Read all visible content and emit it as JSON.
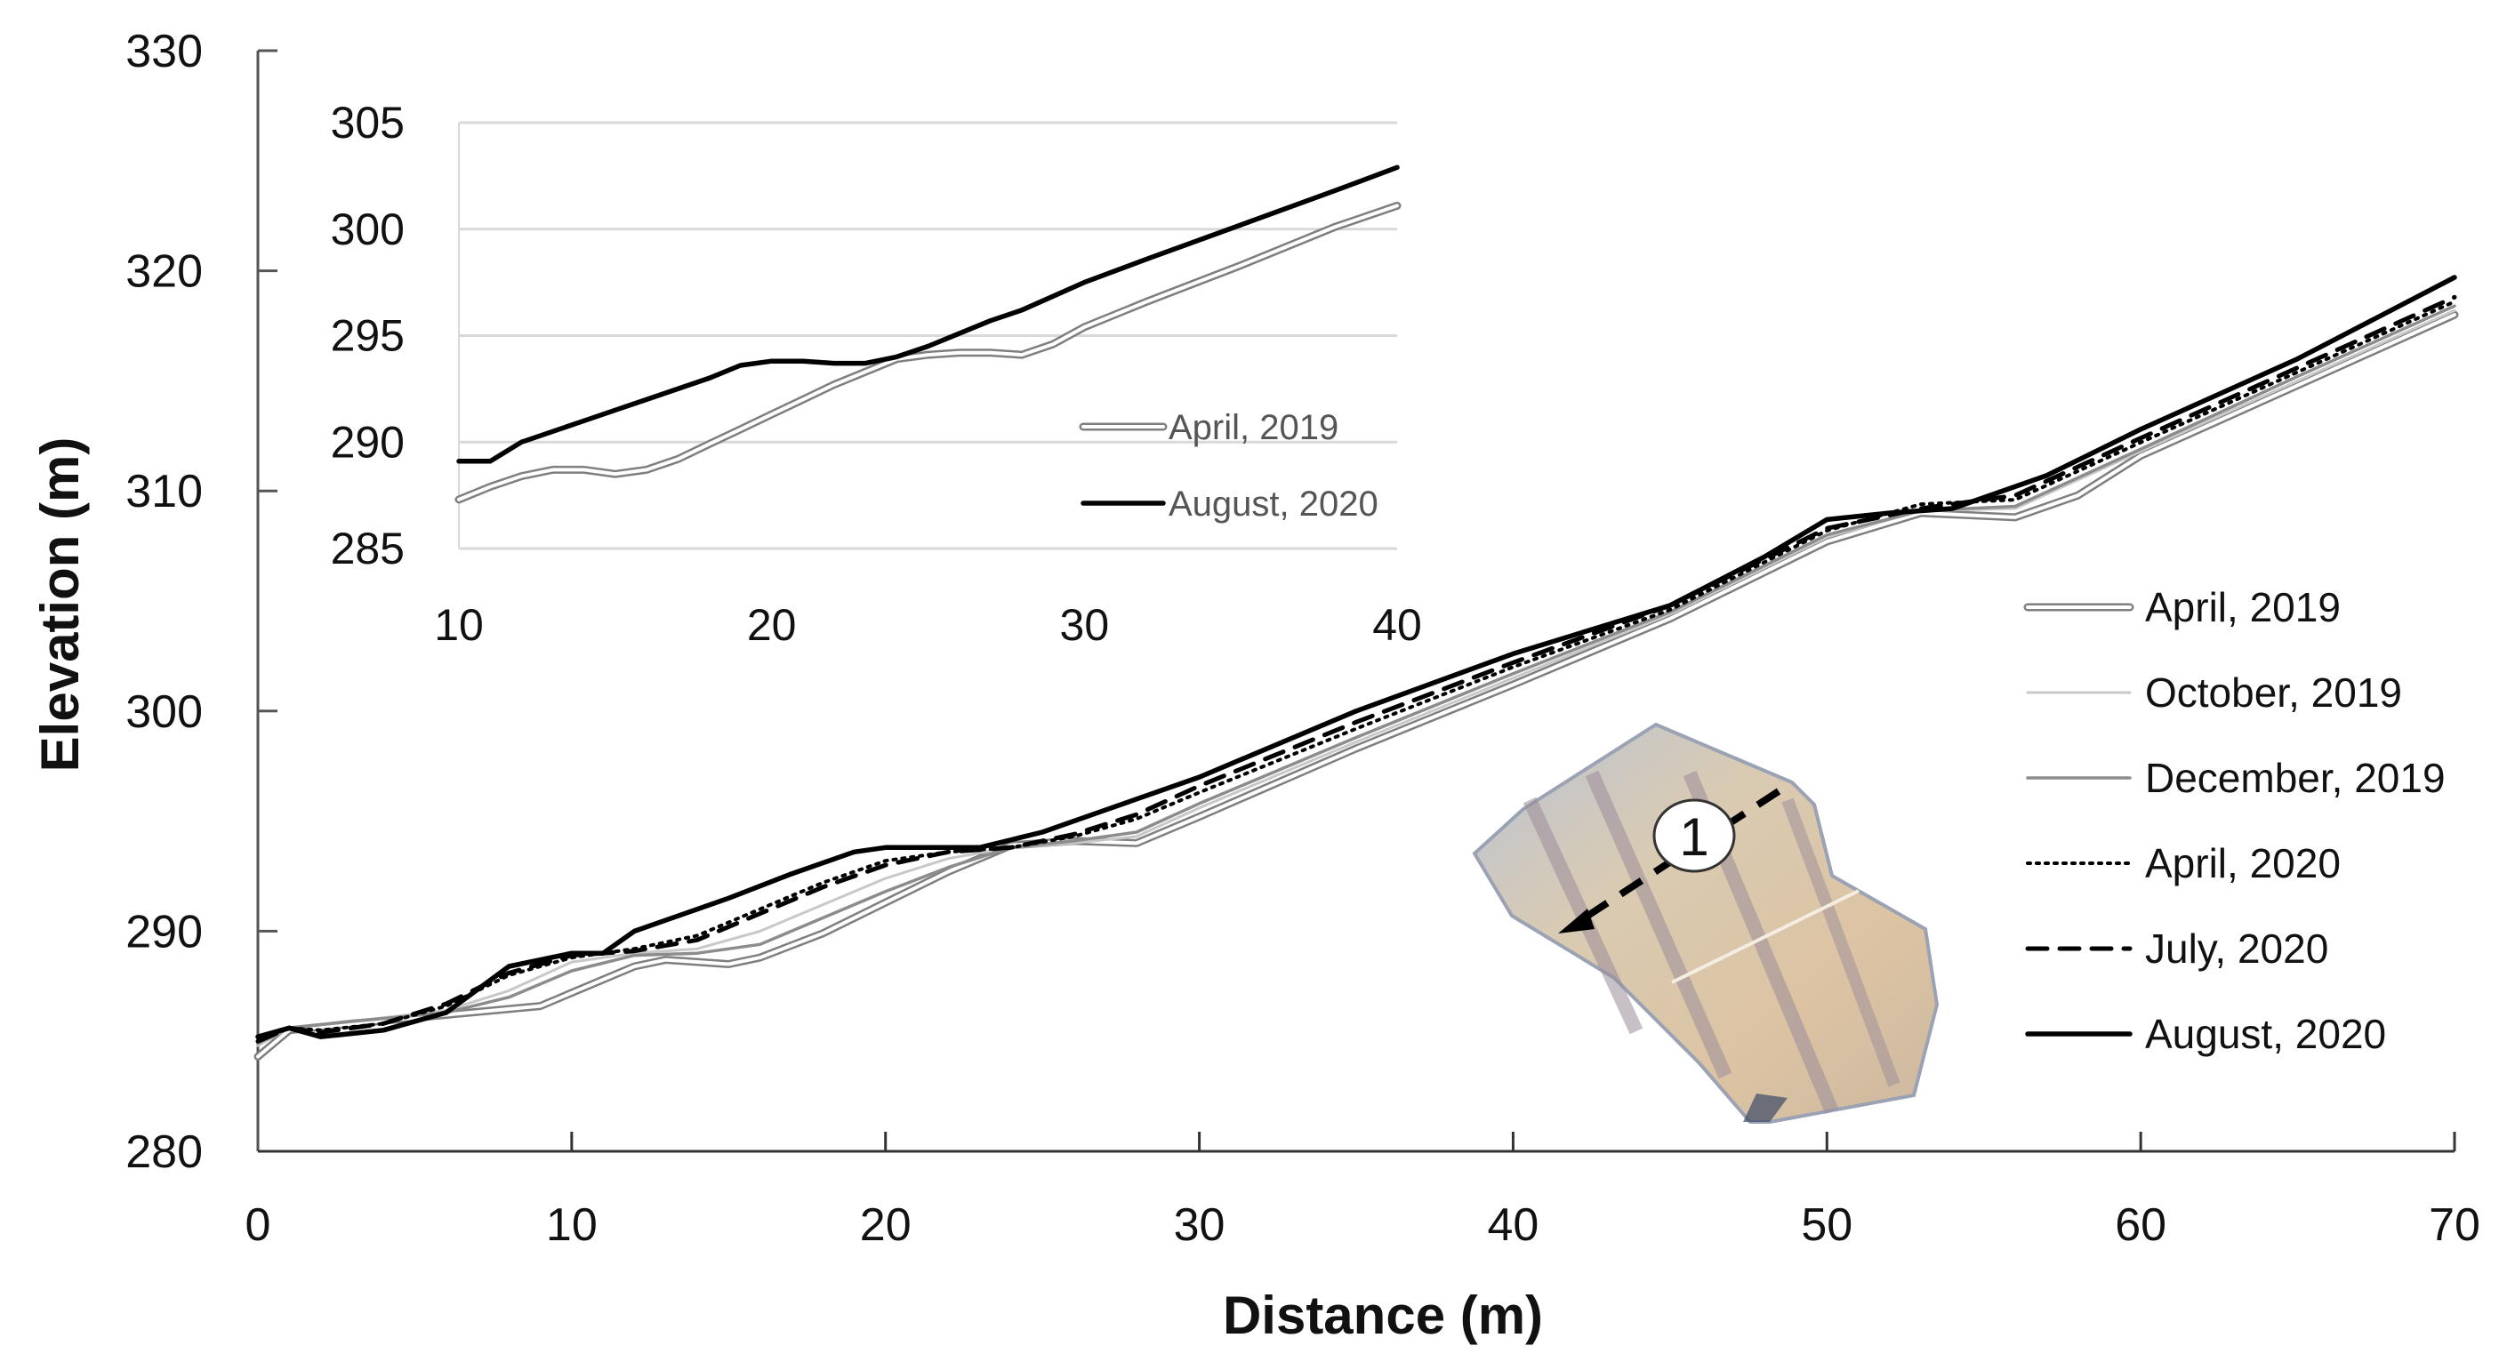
{
  "chart_data": [
    {
      "type": "line",
      "title": "",
      "xlabel": "Distance (m)",
      "ylabel": "Elevation (m)",
      "xlim": [
        0,
        70
      ],
      "ylim": [
        280,
        330
      ],
      "xticks": [
        0,
        10,
        20,
        30,
        40,
        50,
        60,
        70
      ],
      "yticks": [
        280,
        290,
        300,
        310,
        320,
        330
      ],
      "grid": false,
      "legend_position": "right",
      "series": [
        {
          "name": "April, 2019",
          "style": "double-gray",
          "x": [
            0,
            1,
            3,
            6,
            9,
            10,
            12,
            13,
            15,
            16,
            18,
            20,
            22,
            24,
            26,
            28,
            30,
            35,
            40,
            45,
            50,
            53,
            56,
            58,
            60,
            65,
            70
          ],
          "y": [
            284.3,
            285.5,
            285.8,
            286.2,
            286.6,
            287.2,
            288.4,
            288.7,
            288.5,
            288.8,
            289.9,
            291.3,
            292.7,
            293.9,
            294.1,
            294.0,
            295.2,
            298.3,
            301.2,
            304.2,
            307.7,
            309.0,
            308.8,
            309.8,
            311.6,
            314.8,
            318.0
          ]
        },
        {
          "name": "October, 2019",
          "style": "thin-lightgray",
          "x": [
            0,
            1,
            3,
            6,
            8,
            10,
            12,
            14,
            16,
            18,
            20,
            22,
            24,
            26,
            28,
            30,
            35,
            40,
            45,
            50,
            53,
            56,
            60,
            65,
            70
          ],
          "y": [
            284.8,
            285.6,
            285.9,
            286.4,
            287.3,
            288.6,
            289.0,
            289.2,
            290.0,
            291.2,
            292.4,
            293.3,
            293.8,
            294.0,
            294.3,
            295.6,
            298.6,
            301.5,
            304.4,
            307.9,
            309.1,
            309.2,
            311.8,
            315.0,
            318.2
          ]
        },
        {
          "name": "December, 2019",
          "style": "gray",
          "x": [
            0,
            1,
            3,
            6,
            8,
            10,
            12,
            14,
            16,
            18,
            20,
            22,
            24,
            26,
            28,
            30,
            35,
            40,
            45,
            50,
            53,
            56,
            60,
            65,
            70
          ],
          "y": [
            284.9,
            285.6,
            285.9,
            286.3,
            287.0,
            288.2,
            288.9,
            289.0,
            289.4,
            290.6,
            291.8,
            292.9,
            293.8,
            294.1,
            294.5,
            295.8,
            298.8,
            301.7,
            304.5,
            308.0,
            309.1,
            309.3,
            311.9,
            315.2,
            318.4
          ]
        },
        {
          "name": "April, 2020",
          "style": "dotted-black",
          "x": [
            0,
            1,
            2,
            4,
            6,
            8,
            10,
            12,
            14,
            16,
            18,
            20,
            22,
            24,
            26,
            28,
            30,
            35,
            40,
            45,
            50,
            53,
            56,
            60,
            65,
            70
          ],
          "y": [
            285.0,
            285.6,
            285.5,
            285.8,
            286.6,
            288.0,
            288.8,
            289.2,
            289.8,
            291.0,
            292.2,
            293.2,
            293.6,
            293.8,
            294.3,
            295.1,
            296.3,
            299.2,
            302.0,
            304.6,
            308.2,
            309.4,
            309.6,
            312.2,
            315.4,
            318.6
          ]
        },
        {
          "name": "July, 2020",
          "style": "dashed-black",
          "x": [
            0,
            1,
            2,
            4,
            6,
            8,
            10,
            12,
            14,
            16,
            18,
            20,
            22,
            24,
            26,
            28,
            30,
            35,
            40,
            45,
            50,
            53,
            56,
            60,
            65,
            70
          ],
          "y": [
            285.0,
            285.6,
            285.4,
            285.8,
            286.7,
            288.1,
            288.9,
            289.1,
            289.6,
            290.8,
            292.0,
            293.0,
            293.6,
            293.8,
            294.4,
            295.3,
            296.6,
            299.5,
            302.2,
            304.8,
            308.3,
            309.2,
            309.8,
            312.4,
            315.6,
            318.8
          ]
        },
        {
          "name": "August, 2020",
          "style": "solid-black",
          "x": [
            0,
            1,
            2,
            4,
            6,
            8,
            10,
            11,
            12,
            15,
            17,
            19,
            20,
            23,
            25,
            27,
            30,
            35,
            40,
            45,
            48,
            50,
            52,
            54,
            57,
            60,
            65,
            70
          ],
          "y": [
            285.2,
            285.6,
            285.2,
            285.5,
            286.3,
            288.4,
            289.0,
            289.0,
            290.0,
            291.5,
            292.6,
            293.6,
            293.8,
            293.8,
            294.5,
            295.5,
            297.0,
            300.0,
            302.6,
            304.8,
            307.0,
            308.7,
            309.0,
            309.2,
            310.7,
            312.8,
            316.0,
            319.7
          ]
        }
      ]
    },
    {
      "type": "line",
      "title": "",
      "role": "inset",
      "xlabel": "",
      "ylabel": "",
      "xlim": [
        10,
        40
      ],
      "ylim": [
        285,
        305
      ],
      "xticks": [
        10,
        20,
        30,
        40
      ],
      "yticks": [
        285,
        290,
        295,
        300,
        305
      ],
      "grid": true,
      "legend_position": "lower-right",
      "series": [
        {
          "name": "April, 2019",
          "style": "double-gray",
          "x": [
            10,
            11,
            12,
            13,
            14,
            15,
            16,
            17,
            18,
            19,
            20,
            21,
            22,
            23,
            24,
            25,
            26,
            27,
            28,
            29,
            30,
            32,
            35,
            38,
            40
          ],
          "y": [
            287.3,
            287.9,
            288.4,
            288.7,
            288.7,
            288.5,
            288.7,
            289.2,
            289.9,
            290.6,
            291.3,
            292.0,
            292.7,
            293.3,
            293.9,
            294.1,
            294.2,
            294.2,
            294.1,
            294.6,
            295.4,
            296.6,
            298.3,
            300.1,
            301.1
          ]
        },
        {
          "name": "August, 2020",
          "style": "solid-black",
          "x": [
            10,
            11,
            12,
            13,
            14,
            15,
            16,
            17,
            18,
            19,
            20,
            21,
            22,
            23,
            24,
            25,
            26,
            27,
            28,
            30,
            32,
            35,
            38,
            40
          ],
          "y": [
            289.1,
            289.1,
            290.0,
            290.5,
            291.0,
            291.5,
            292.0,
            292.5,
            293.0,
            293.6,
            293.8,
            293.8,
            293.7,
            293.7,
            294.0,
            294.5,
            295.1,
            295.7,
            296.2,
            297.5,
            298.6,
            300.2,
            301.8,
            302.9
          ]
        }
      ]
    }
  ],
  "main": {
    "xlabel": "Distance (m)",
    "ylabel": "Elevation (m)",
    "xtick_labels": [
      "0",
      "10",
      "20",
      "30",
      "40",
      "50",
      "60",
      "70"
    ],
    "ytick_labels": [
      "280",
      "290",
      "300",
      "310",
      "320",
      "330"
    ]
  },
  "inset": {
    "xtick_labels": [
      "10",
      "20",
      "30",
      "40"
    ],
    "ytick_labels": [
      "285",
      "290",
      "295",
      "300",
      "305"
    ],
    "legend": [
      "April, 2019",
      "August, 2020"
    ]
  },
  "legend": {
    "items": [
      "April, 2019",
      "October, 2019",
      "December, 2019",
      "April, 2020",
      "July, 2020",
      "August, 2020"
    ]
  },
  "photo": {
    "label": "1",
    "description": "aerial photo of hillslope plot with transect arrow"
  },
  "colors": {
    "axis": "#333333",
    "grid": "#d9d9d9",
    "black": "#000000",
    "gray": "#808080",
    "light_gray": "#bfbfbf",
    "photo_base": "#d8c4a8",
    "photo_shadow": "#8a96ad"
  }
}
